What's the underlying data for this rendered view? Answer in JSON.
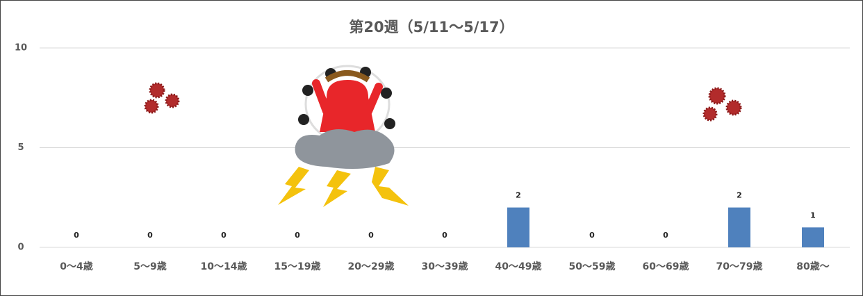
{
  "chart_data": {
    "type": "bar",
    "title": "第20週（5/11～5/17）",
    "categories": [
      "0～4歳",
      "5～9歳",
      "10～14歳",
      "15～19歳",
      "20～29歳",
      "30～39歳",
      "40～49歳",
      "50～59歳",
      "60～69歳",
      "70～79歳",
      "80歳～"
    ],
    "values": [
      0,
      0,
      0,
      0,
      0,
      0,
      2,
      0,
      0,
      2,
      1
    ],
    "color": "#4f81bd",
    "ylim": [
      0,
      10
    ],
    "yticks": [
      0,
      5,
      10
    ],
    "grid": true
  }
}
